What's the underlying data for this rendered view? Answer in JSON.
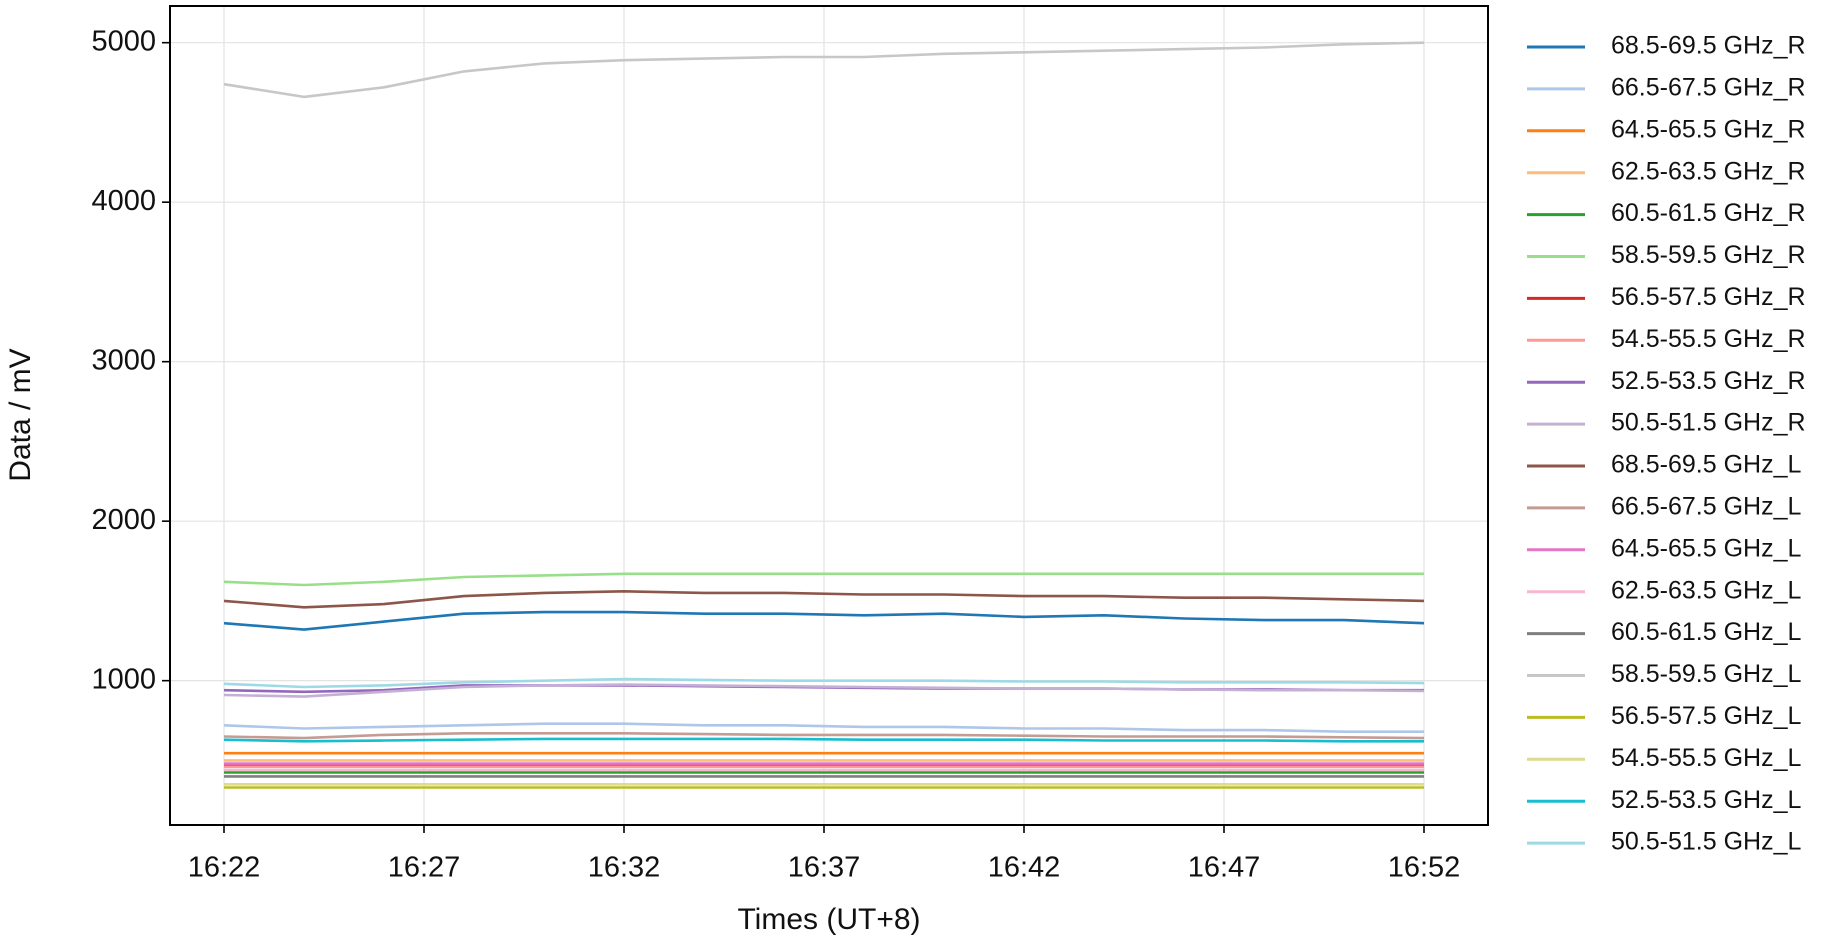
{
  "chart_data": {
    "type": "line",
    "x_label": "Times (UT+8)",
    "y_label": "Data / mV",
    "x": [
      "16:22",
      "16:24",
      "16:26",
      "16:28",
      "16:30",
      "16:32",
      "16:34",
      "16:36",
      "16:38",
      "16:40",
      "16:42",
      "16:44",
      "16:46",
      "16:48",
      "16:50",
      "16:52"
    ],
    "xticks": [
      "16:22",
      "16:27",
      "16:32",
      "16:37",
      "16:42",
      "16:47",
      "16:52"
    ],
    "ylim": [
      95,
      5230
    ],
    "yticks": [
      1000,
      2000,
      3000,
      4000,
      5000
    ],
    "grid": true,
    "legend": "outside-right",
    "series": [
      {
        "name": "68.5-69.5 GHz_R",
        "color": "#1f77b4",
        "values": [
          1360,
          1320,
          1370,
          1420,
          1430,
          1430,
          1420,
          1420,
          1410,
          1420,
          1400,
          1410,
          1390,
          1380,
          1380,
          1360
        ]
      },
      {
        "name": "66.5-67.5 GHz_R",
        "color": "#aec7e8",
        "values": [
          720,
          700,
          710,
          720,
          730,
          730,
          720,
          720,
          710,
          710,
          700,
          700,
          690,
          690,
          680,
          680
        ]
      },
      {
        "name": "64.5-65.5 GHz_R",
        "color": "#ff7f0e",
        "values": [
          545,
          545,
          545,
          545,
          545,
          545,
          545,
          545,
          545,
          545,
          545,
          545,
          545,
          545,
          545,
          545
        ]
      },
      {
        "name": "62.5-63.5 GHz_R",
        "color": "#ffbb78",
        "values": [
          500,
          500,
          500,
          500,
          500,
          500,
          500,
          500,
          500,
          500,
          500,
          500,
          500,
          500,
          500,
          500
        ]
      },
      {
        "name": "60.5-61.5 GHz_R",
        "color": "#2ca02c",
        "values": [
          425,
          425,
          425,
          425,
          425,
          425,
          425,
          425,
          425,
          425,
          425,
          425,
          425,
          425,
          425,
          425
        ]
      },
      {
        "name": "58.5-59.5 GHz_R",
        "color": "#98df8a",
        "values": [
          1620,
          1600,
          1620,
          1650,
          1660,
          1670,
          1670,
          1670,
          1670,
          1670,
          1670,
          1670,
          1670,
          1670,
          1670,
          1670
        ]
      },
      {
        "name": "56.5-57.5 GHz_R",
        "color": "#d62728",
        "values": [
          470,
          470,
          470,
          470,
          470,
          470,
          470,
          470,
          470,
          470,
          470,
          470,
          470,
          470,
          470,
          470
        ]
      },
      {
        "name": "54.5-55.5 GHz_R",
        "color": "#ff9896",
        "values": [
          460,
          460,
          460,
          460,
          460,
          460,
          460,
          460,
          460,
          460,
          460,
          460,
          460,
          460,
          460,
          460
        ]
      },
      {
        "name": "52.5-53.5 GHz_R",
        "color": "#9467bd",
        "values": [
          940,
          930,
          940,
          970,
          970,
          970,
          965,
          960,
          955,
          950,
          950,
          950,
          945,
          945,
          940,
          940
        ]
      },
      {
        "name": "50.5-51.5 GHz_R",
        "color": "#c5b0d5",
        "values": [
          910,
          900,
          930,
          960,
          970,
          975,
          970,
          965,
          960,
          955,
          950,
          950,
          945,
          940,
          940,
          935
        ]
      },
      {
        "name": "68.5-69.5 GHz_L",
        "color": "#8c564b",
        "values": [
          1500,
          1460,
          1480,
          1530,
          1550,
          1560,
          1550,
          1550,
          1540,
          1540,
          1530,
          1530,
          1520,
          1520,
          1510,
          1500
        ]
      },
      {
        "name": "66.5-67.5 GHz_L",
        "color": "#c49c94",
        "values": [
          650,
          640,
          660,
          670,
          670,
          670,
          665,
          660,
          660,
          660,
          655,
          650,
          650,
          650,
          645,
          640
        ]
      },
      {
        "name": "64.5-65.5 GHz_L",
        "color": "#e377c2",
        "values": [
          480,
          480,
          480,
          480,
          480,
          480,
          480,
          480,
          480,
          480,
          480,
          480,
          480,
          480,
          480,
          480
        ]
      },
      {
        "name": "62.5-63.5 GHz_L",
        "color": "#f7b6d2",
        "values": [
          440,
          440,
          440,
          440,
          440,
          440,
          440,
          440,
          440,
          440,
          440,
          440,
          440,
          440,
          440,
          440
        ]
      },
      {
        "name": "60.5-61.5 GHz_L",
        "color": "#7f7f7f",
        "values": [
          400,
          400,
          400,
          400,
          400,
          400,
          400,
          400,
          400,
          400,
          400,
          400,
          400,
          400,
          400,
          400
        ]
      },
      {
        "name": "58.5-59.5 GHz_L",
        "color": "#c7c7c7",
        "values": [
          4740,
          4660,
          4720,
          4820,
          4870,
          4890,
          4900,
          4910,
          4910,
          4930,
          4940,
          4950,
          4960,
          4970,
          4990,
          5000
        ]
      },
      {
        "name": "56.5-57.5 GHz_L",
        "color": "#bcbd22",
        "values": [
          330,
          330,
          330,
          330,
          330,
          330,
          330,
          330,
          330,
          330,
          330,
          330,
          330,
          330,
          330,
          330
        ]
      },
      {
        "name": "54.5-55.5 GHz_L",
        "color": "#dbdb8d",
        "values": [
          350,
          350,
          350,
          350,
          350,
          350,
          350,
          350,
          350,
          350,
          350,
          350,
          350,
          350,
          350,
          350
        ]
      },
      {
        "name": "52.5-53.5 GHz_L",
        "color": "#17becf",
        "values": [
          630,
          620,
          625,
          630,
          635,
          635,
          635,
          635,
          630,
          630,
          630,
          625,
          625,
          625,
          620,
          620
        ]
      },
      {
        "name": "50.5-51.5 GHz_L",
        "color": "#9edae5",
        "values": [
          980,
          960,
          970,
          990,
          1000,
          1010,
          1005,
          1000,
          1000,
          1000,
          995,
          995,
          990,
          990,
          990,
          985
        ]
      }
    ]
  }
}
